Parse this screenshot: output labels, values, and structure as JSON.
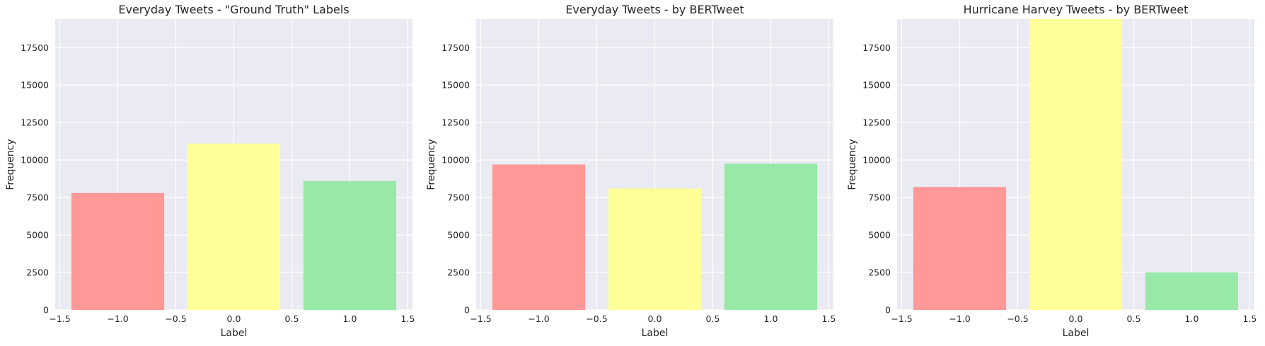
{
  "chart_data": [
    {
      "type": "bar",
      "title": "Everyday Tweets - \"Ground Truth\" Labels",
      "xlabel": "Label",
      "ylabel": "Frequency",
      "x": [
        -1.0,
        0.0,
        1.0
      ],
      "values": [
        7800,
        11100,
        8600
      ],
      "bar_width": 0.8,
      "colors": [
        "#ff9896",
        "#ffff99",
        "#98e8a8"
      ],
      "xlim": [
        -1.54,
        1.54
      ],
      "ylim": [
        0,
        19400
      ],
      "xticks": [
        -1.5,
        -1.0,
        -0.5,
        0.0,
        0.5,
        1.0,
        1.5
      ],
      "xtick_labels": [
        "−1.5",
        "−1.0",
        "−0.5",
        "0.0",
        "0.5",
        "1.0",
        "1.5"
      ],
      "yticks": [
        0,
        2500,
        5000,
        7500,
        10000,
        12500,
        15000,
        17500
      ],
      "ytick_labels": [
        "0",
        "2500",
        "5000",
        "7500",
        "10000",
        "12500",
        "15000",
        "17500"
      ],
      "grid": true,
      "style": "seaborn-darkgrid"
    },
    {
      "type": "bar",
      "title": "Everyday Tweets - by BERTweet",
      "xlabel": "Label",
      "ylabel": "Frequency",
      "x": [
        -1.0,
        0.0,
        1.0
      ],
      "values": [
        9700,
        8100,
        9750
      ],
      "bar_width": 0.8,
      "colors": [
        "#ff9896",
        "#ffff99",
        "#98e8a8"
      ],
      "xlim": [
        -1.54,
        1.54
      ],
      "ylim": [
        0,
        19400
      ],
      "xticks": [
        -1.5,
        -1.0,
        -0.5,
        0.0,
        0.5,
        1.0,
        1.5
      ],
      "xtick_labels": [
        "−1.5",
        "−1.0",
        "−0.5",
        "0.0",
        "0.5",
        "1.0",
        "1.5"
      ],
      "yticks": [
        0,
        2500,
        5000,
        7500,
        10000,
        12500,
        15000,
        17500
      ],
      "ytick_labels": [
        "0",
        "2500",
        "5000",
        "7500",
        "10000",
        "12500",
        "15000",
        "17500"
      ],
      "grid": true,
      "style": "seaborn-darkgrid"
    },
    {
      "type": "bar",
      "title": "Hurricane Harvey Tweets - by BERTweet",
      "xlabel": "Label",
      "ylabel": "Frequency",
      "x": [
        -1.0,
        0.0,
        1.0
      ],
      "values": [
        8200,
        19400,
        2500
      ],
      "bar_width": 0.8,
      "colors": [
        "#ff9896",
        "#ffff99",
        "#98e8a8"
      ],
      "xlim": [
        -1.54,
        1.54
      ],
      "ylim": [
        0,
        19400
      ],
      "xticks": [
        -1.5,
        -1.0,
        -0.5,
        0.0,
        0.5,
        1.0,
        1.5
      ],
      "xtick_labels": [
        "−1.5",
        "−1.0",
        "−0.5",
        "0.0",
        "0.5",
        "1.0",
        "1.5"
      ],
      "yticks": [
        0,
        2500,
        5000,
        7500,
        10000,
        12500,
        15000,
        17500
      ],
      "ytick_labels": [
        "0",
        "2500",
        "5000",
        "7500",
        "10000",
        "12500",
        "15000",
        "17500"
      ],
      "grid": true,
      "style": "seaborn-darkgrid"
    }
  ],
  "theme": {
    "axes_bg": "#eaeaf2",
    "grid": "#ffffff",
    "text": "#262626"
  }
}
